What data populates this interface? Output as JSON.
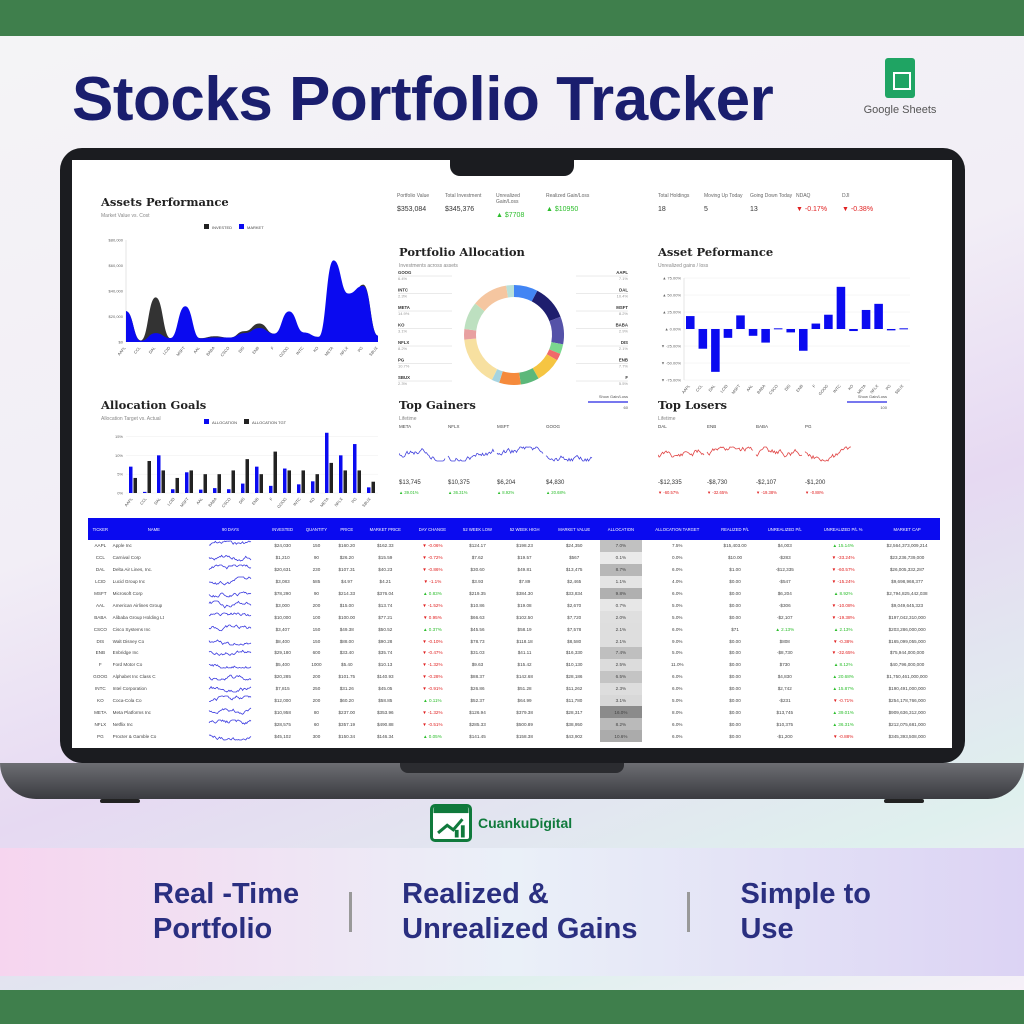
{
  "header": {
    "title": "Stocks Portfolio Tracker",
    "logo_label": "Google Sheets"
  },
  "colors": {
    "accent": "#0a0af0",
    "title": "#1a1e6e",
    "gain": "#2bbd2b",
    "loss": "#e02020",
    "invested": "#333333"
  },
  "kpis": [
    {
      "label": "Portfolio Value",
      "value": "$353,084",
      "trend": ""
    },
    {
      "label": "Total Investment",
      "value": "$345,376",
      "trend": ""
    },
    {
      "label": "Unrealized Gain/Loss",
      "value": "▲ $7708",
      "trend": "up"
    },
    {
      "label": "Realized Gain/Loss",
      "value": "▲ $10950",
      "trend": "up"
    },
    {
      "label": "Total Holdings",
      "value": "18",
      "trend": ""
    },
    {
      "label": "Moving Up Today",
      "value": "5",
      "trend": ""
    },
    {
      "label": "Going Down Today",
      "value": "13",
      "trend": ""
    },
    {
      "label": "NDAQ",
      "value": "▼ -0.17%",
      "trend": "down"
    },
    {
      "label": "DJI",
      "value": "▼ -0.38%",
      "trend": "down"
    }
  ],
  "assets_performance": {
    "title": "Assets Performance",
    "subtitle": "Market Value vs. Cost",
    "legend": [
      "INVESTED",
      "MARKET"
    ]
  },
  "portfolio_allocation": {
    "title": "Portfolio Allocation",
    "subtitle": "Investments across assets"
  },
  "asset_performance_bars": {
    "title": "Asset Peformance",
    "subtitle": "Unrealized gains / loss"
  },
  "allocation_goals": {
    "title": "Allocation Goals",
    "subtitle": "Allocation Target vs. Actual",
    "legend": [
      "ALLOCATION",
      "ALLOCATION TGT"
    ]
  },
  "top_gainers": {
    "title": "Top Gainers",
    "subtitle": "Lifetime",
    "toggle": "Show Gain/Loss",
    "toggle_value": "60",
    "items": [
      {
        "ticker": "META",
        "value": "$13,745",
        "pct": "▲ 39.01%"
      },
      {
        "ticker": "NFLX",
        "value": "$10,375",
        "pct": "▲ 36.31%"
      },
      {
        "ticker": "MSFT",
        "value": "$6,204",
        "pct": "▲ 8.92%"
      },
      {
        "ticker": "GOOG",
        "value": "$4,830",
        "pct": "▲ 20.68%"
      }
    ]
  },
  "top_losers": {
    "title": "Top Losers",
    "subtitle": "Lifetime",
    "toggle": "Show Gain/Loss",
    "toggle_value": "100",
    "items": [
      {
        "ticker": "DAL",
        "value": "-$12,335",
        "pct": "▼ -60.57%"
      },
      {
        "ticker": "ENB",
        "value": "-$8,730",
        "pct": "▼ -32.65%"
      },
      {
        "ticker": "BABA",
        "value": "-$2,107",
        "pct": "▼ -19.38%"
      },
      {
        "ticker": "PG",
        "value": "-$1,200",
        "pct": "▼ -0.88%"
      }
    ]
  },
  "chart_data": [
    {
      "type": "area",
      "title": "Assets Performance",
      "categories": [
        "AAPL",
        "CCL",
        "DAL",
        "LCID",
        "MSFT",
        "AAL",
        "BABA",
        "CSCO",
        "DIS",
        "ENB",
        "F",
        "GOOG",
        "INTC",
        "KO",
        "META",
        "NFLX",
        "PG",
        "SBUX"
      ],
      "ylim": [
        0,
        80000
      ],
      "yticks": [
        "$0",
        "$20,000",
        "$40,000",
        "$60,000",
        "$80,000"
      ],
      "series": [
        {
          "name": "INVESTED",
          "values": [
            24030,
            1210,
            35000,
            3000,
            19000,
            3000,
            4500,
            3400,
            8500,
            14500,
            6500,
            20000,
            7000,
            4000,
            50000,
            28000,
            45000,
            5000
          ]
        },
        {
          "name": "MARKET",
          "values": [
            24200,
            1000,
            7000,
            3000,
            28000,
            2800,
            3500,
            3500,
            7000,
            11000,
            6500,
            24000,
            7500,
            4000,
            64000,
            38000,
            44000,
            5000
          ]
        }
      ]
    },
    {
      "type": "bar",
      "title": "Asset Peformance",
      "categories": [
        "AAPL",
        "CCL",
        "DAL",
        "LCID",
        "MSFT",
        "AAL",
        "BABA",
        "CSCO",
        "DIS",
        "ENB",
        "F",
        "GOOG",
        "INTC",
        "KO",
        "META",
        "NFLX",
        "PG",
        "SBUX"
      ],
      "ylim": [
        -75,
        75
      ],
      "yticks": [
        "▲ 75.00%",
        "▲ 50.00%",
        "▲ 25.00%",
        "▲ 0.00%",
        "▼ -25.00%",
        "▼ -50.00%",
        "▼ -75.00%"
      ],
      "values": [
        19,
        -29,
        -63,
        -13,
        20,
        -10,
        -20,
        1,
        -5,
        -32,
        8,
        21,
        62,
        -3,
        28,
        37,
        -2,
        1
      ]
    },
    {
      "type": "pie",
      "title": "Portfolio Allocation",
      "labels": [
        "AAPL",
        "DAL",
        "MSFT",
        "BABA",
        "DIS",
        "ENB",
        "F",
        "GOOG",
        "INTC",
        "META",
        "KO",
        "NFLX",
        "PG",
        "SBUX"
      ],
      "values": [
        7.1,
        10.4,
        8.2,
        2.9,
        2.1,
        7.7,
        5.5,
        6.4,
        2.3,
        14.9,
        3.1,
        8.2,
        10.7,
        2.3
      ],
      "colors": [
        "#4285f4",
        "#1e1e6e",
        "#5552a8",
        "#7bd88f",
        "#f06a6a",
        "#f5c542",
        "#5cb87a",
        "#f58a3c",
        "#a6d4e0",
        "#f7e0a0",
        "#e8a0a0",
        "#bde0c0",
        "#f5c6a0",
        "#b9e0d8"
      ]
    },
    {
      "type": "bar",
      "title": "Allocation Goals",
      "categories": [
        "AAPL",
        "CCL",
        "DAL",
        "LCID",
        "MSFT",
        "AAL",
        "BABA",
        "CSCO",
        "DIS",
        "ENB",
        "F",
        "GOOG",
        "INTC",
        "KO",
        "META",
        "NFLX",
        "PG",
        "SBUX"
      ],
      "ylim": [
        0,
        17
      ],
      "yticks": [
        "0%",
        "5%",
        "10%",
        "15%"
      ],
      "series": [
        {
          "name": "ALLOCATION",
          "values": [
            7,
            0.3,
            10,
            1,
            5.5,
            0.9,
            1.3,
            1,
            2.5,
            7,
            1.9,
            6.5,
            2.3,
            3.1,
            16,
            10,
            13,
            1.5
          ]
        },
        {
          "name": "ALLOCATION TGT",
          "values": [
            4,
            8.5,
            6,
            4,
            6,
            5,
            5,
            6,
            9,
            5,
            11,
            6,
            6,
            5,
            8,
            6,
            6,
            3
          ]
        }
      ]
    }
  ],
  "table": {
    "columns": [
      "TICKER",
      "NAME",
      "90 DAYS",
      "INVESTED",
      "QUANTITY",
      "PRICE",
      "MARKET PRICE",
      "DAY CHANGE",
      "52 WEEK LOW",
      "52 WEEK HIGH",
      "MARKET VALUE",
      "ALLOCATION",
      "ALLOCATION TARGET",
      "REALIZED P/L",
      "UNREALIZED P/L",
      "UNREALIZED P/L %",
      "MARKET CAP"
    ],
    "rows": [
      [
        "AAPL",
        "Apple Inc",
        "",
        "$24,030",
        "150",
        "$160.20",
        "$162.33",
        "▼ -0.06%",
        "$124.17",
        "$198.23",
        "$24,350",
        "7.0%",
        "7.5%",
        "$15,403.00",
        "$4,003",
        "▲ 15.14%",
        "$2,564,373,009,214"
      ],
      [
        "CCL",
        "Carnival Corp",
        "",
        "$1,210",
        "90",
        "$26.20",
        "$15.59",
        "▼ -0.72%",
        "$7.62",
        "$19.57",
        "$567",
        "0.1%",
        "0.0%",
        "$10.00",
        "-$283",
        "▼ -33.24%",
        "$23,236,739,000"
      ],
      [
        "DAL",
        "Delta Air Lines, Inc.",
        "",
        "$20,631",
        "230",
        "$107.31",
        "$40.23",
        "▼ -0.86%",
        "$30.60",
        "$49.81",
        "$13,475",
        "8.7%",
        "6.0%",
        "$1.00",
        "-$12,335",
        "▼ -60.57%",
        "$26,005,332,287"
      ],
      [
        "LCID",
        "Lucid Group Inc",
        "",
        "$3,083",
        "585",
        "$4.97",
        "$4.21",
        "▼ -1.1%",
        "$3.93",
        "$7.89",
        "$2,465",
        "1.1%",
        "4.0%",
        "$0.00",
        "-$547",
        "▼ -15.24%",
        "$9,698,968,377"
      ],
      [
        "MSFT",
        "Microsoft Corp",
        "",
        "$78,290",
        "90",
        "$214.33",
        "$376.04",
        "▲ 0.83%",
        "$219.35",
        "$384.30",
        "$33,834",
        "9.8%",
        "6.0%",
        "$0.00",
        "$6,204",
        "▲ 8.92%",
        "$2,794,825,442,038"
      ],
      [
        "AAL",
        "American Airlines Group",
        "",
        "$3,000",
        "200",
        "$15.00",
        "$13.74",
        "▼ -1.52%",
        "$10.86",
        "$19.08",
        "$2,670",
        "0.7%",
        "5.0%",
        "$0.00",
        "-$306",
        "▼ -10.08%",
        "$9,049,645,323"
      ],
      [
        "BABA",
        "Alibaba Group Holding Lt",
        "",
        "$10,000",
        "100",
        "$100.00",
        "$77.21",
        "▼ 0.95%",
        "$66.63",
        "$102.50",
        "$7,720",
        "2.0%",
        "5.0%",
        "$0.00",
        "-$2,107",
        "▼ -19.38%",
        "$197,042,310,000"
      ],
      [
        "CSCO",
        "Cisco Systems Inc",
        "",
        "$3,407",
        "150",
        "$49.38",
        "$50.52",
        "▲ 0.37%",
        "$45.56",
        "$58.19",
        "$7,578",
        "2.1%",
        "6.0%",
        "$71",
        "▲ 2.13%",
        "▲ 2.13%",
        "$203,286,000,000"
      ],
      [
        "DIS",
        "Walt Disney Co",
        "",
        "$8,400",
        "150",
        "$88.00",
        "$90.28",
        "▼ -0.10%",
        "$78.73",
        "$118.18",
        "$8,580",
        "2.1%",
        "9.0%",
        "$0.00",
        "$808",
        "▼ -0.38%",
        "$165,099,055,000"
      ],
      [
        "ENB",
        "Enbridge Inc",
        "",
        "$29,180",
        "600",
        "$33.40",
        "$35.74",
        "▼ -0.47%",
        "$31.03",
        "$41.11",
        "$16,330",
        "7.4%",
        "5.0%",
        "$0.00",
        "-$8,730",
        "▼ -32.65%",
        "$75,944,000,000"
      ],
      [
        "F",
        "Ford Motor Co",
        "",
        "$5,400",
        "1000",
        "$5.40",
        "$10.13",
        "▼ -1.32%",
        "$9.63",
        "$15.42",
        "$10,130",
        "2.5%",
        "11.0%",
        "$0.00",
        "$730",
        "▲ 8.12%",
        "$40,796,000,000"
      ],
      [
        "GOOG",
        "Alphabet Inc Class C",
        "",
        "$20,285",
        "200",
        "$101.75",
        "$140.93",
        "▼ -0.28%",
        "$88.37",
        "$142.68",
        "$28,186",
        "6.5%",
        "6.0%",
        "$0.00",
        "$4,830",
        "▲ 20.68%",
        "$1,750,461,000,000"
      ],
      [
        "INTC",
        "Intel Corporation",
        "",
        "$7,815",
        "250",
        "$31.26",
        "$45.05",
        "▼ -0.91%",
        "$26.86",
        "$51.28",
        "$11,262",
        "2.3%",
        "6.0%",
        "$0.00",
        "$2,742",
        "▲ 15.87%",
        "$190,491,000,000"
      ],
      [
        "KO",
        "Coca-Cola Co",
        "",
        "$12,000",
        "200",
        "$60.20",
        "$58.85",
        "▲ 0.11%",
        "$52.37",
        "$64.99",
        "$11,780",
        "3.1%",
        "5.0%",
        "$0.00",
        "-$231",
        "▼ -0.71%",
        "$254,178,766,000"
      ],
      [
        "META",
        "Meta Platforms Inc",
        "",
        "$10,958",
        "80",
        "$237.00",
        "$353.96",
        "▼ -1.32%",
        "$126.94",
        "$379.38",
        "$28,317",
        "16.0%",
        "8.0%",
        "$0.00",
        "$13,745",
        "▲ 39.01%",
        "$909,636,312,000"
      ],
      [
        "NFLX",
        "Netflix Inc",
        "",
        "$28,575",
        "60",
        "$357.19",
        "$490.88",
        "▼ -0.51%",
        "$285.33",
        "$500.89",
        "$38,950",
        "8.2%",
        "6.0%",
        "$0.00",
        "$10,375",
        "▲ 36.31%",
        "$212,075,681,000"
      ],
      [
        "PG",
        "Procter & Gamble Co",
        "",
        "$45,102",
        "300",
        "$150.34",
        "$146.34",
        "▲ 0.05%",
        "$141.45",
        "$158.38",
        "$43,902",
        "10.6%",
        "6.0%",
        "$0.00",
        "-$1,200",
        "▼ -0.88%",
        "$345,393,508,000"
      ]
    ]
  },
  "watermark": "CuankuDigital",
  "features": [
    {
      "line1": "Real -Time",
      "line2": "Portfolio"
    },
    {
      "line1": "Realized &",
      "line2": "Unrealized Gains"
    },
    {
      "line1": "Simple to",
      "line2": "Use"
    }
  ]
}
